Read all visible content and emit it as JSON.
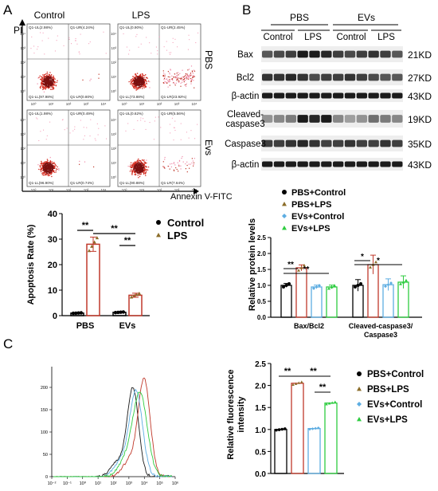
{
  "panels": {
    "A": "A",
    "B": "B",
    "C": "C"
  },
  "flow": {
    "col_labels": [
      "Control",
      "LPS"
    ],
    "row_labels": [
      "PBS",
      "Evs"
    ],
    "y_axis": "PI",
    "x_axis": "Annexin V-FITC",
    "plots": [
      {
        "ul": "Q1-UL(2.98%)",
        "ur": "Q1-UR(4.24%)",
        "ll": "Q1-LL(97.98%)",
        "lr": "Q1-LR(0.80%)"
      },
      {
        "ul": "Q1-UL(0.90%)",
        "ur": "Q1-UR(2.45%)",
        "ll": "Q1-LL(73.88%)",
        "lr": "Q1-LR(23.92%)"
      },
      {
        "ul": "Q1-UL(1.98%)",
        "ur": "Q1-UR(0.49%)",
        "ll": "Q1-LL(96.90%)",
        "lr": "Q1-LR(0.74%)"
      },
      {
        "ul": "Q1-UL(0.62%)",
        "ur": "Q1-UR(5.56%)",
        "ll": "Q1-LL(90.88%)",
        "lr": "Q1-LR(7.64%)"
      }
    ]
  },
  "blot": {
    "group_labels": [
      "PBS",
      "EVs"
    ],
    "sub_labels": [
      "Control",
      "LPS",
      "Control",
      "LPS"
    ],
    "rows": [
      {
        "protein": "Bax",
        "kd": "21KD"
      },
      {
        "protein": "Bcl2",
        "kd": "27KD"
      },
      {
        "protein": "β-actin",
        "kd": "43KD"
      },
      {
        "protein": "Cleaved-\ncaspase3",
        "kd": "19KD"
      },
      {
        "protein": "Caspase3",
        "kd": "35KD"
      },
      {
        "protein": "β-actin",
        "kd": "43KD"
      }
    ]
  },
  "histogram": {
    "y_ticks": [
      "0",
      "50",
      "100",
      "150",
      "200"
    ],
    "x_ticks": [
      "10⁻²",
      "10⁻¹",
      "10⁰",
      "10¹",
      "10²",
      "10³",
      "10⁴",
      "10⁵",
      "10⁶"
    ],
    "series_colors": [
      "#1a1a1a",
      "#c0392b",
      "#5dade2",
      "#2ecc40"
    ]
  },
  "chart_data": [
    {
      "type": "bar",
      "title": "",
      "xlabel": "",
      "ylabel": "Apoptosis Rate (%)",
      "categories": [
        "PBS",
        "EVs"
      ],
      "ylim": [
        0,
        40
      ],
      "yticks": [
        0,
        10,
        20,
        30,
        40
      ],
      "series": [
        {
          "name": "Control",
          "values": [
            1.0,
            1.3
          ],
          "color": "#000000"
        },
        {
          "name": "LPS",
          "values": [
            28.0,
            8.0
          ],
          "color": "#c0392b"
        }
      ],
      "significance": [
        "**",
        "**",
        "**"
      ],
      "legend": "top-right"
    },
    {
      "type": "bar",
      "title": "",
      "xlabel": "",
      "ylabel": "Relative protein levels",
      "categories": [
        "Bax/Bcl2",
        "Cleaved-caspase3/\nCaspase3"
      ],
      "ylim": [
        0,
        2.5
      ],
      "yticks": [
        0.0,
        0.5,
        1.0,
        1.5,
        2.0,
        2.5
      ],
      "series": [
        {
          "name": "PBS+Control",
          "values": [
            1.0,
            1.0
          ],
          "color": "#000000"
        },
        {
          "name": "PBS+LPS",
          "values": [
            1.55,
            1.65
          ],
          "color": "#c0392b"
        },
        {
          "name": "EVs+Control",
          "values": [
            0.95,
            1.02
          ],
          "color": "#5dade2"
        },
        {
          "name": "EVs+LPS",
          "values": [
            0.95,
            1.1
          ],
          "color": "#2ecc40"
        }
      ],
      "significance": [
        "**",
        "**",
        "*",
        "*"
      ],
      "legend": "top"
    },
    {
      "type": "bar",
      "title": "",
      "xlabel": "",
      "ylabel": "Relative fluorescence\nintensity",
      "categories": [
        ""
      ],
      "ylim": [
        0,
        2.5
      ],
      "yticks": [
        0.0,
        0.5,
        1.0,
        1.5,
        2.0,
        2.5
      ],
      "series": [
        {
          "name": "PBS+Control",
          "values": [
            1.0
          ],
          "color": "#000000"
        },
        {
          "name": "PBS+LPS",
          "values": [
            2.05
          ],
          "color": "#c0392b"
        },
        {
          "name": "EVs+Control",
          "values": [
            1.02
          ],
          "color": "#5dade2"
        },
        {
          "name": "EVs+LPS",
          "values": [
            1.6
          ],
          "color": "#2ecc40"
        }
      ],
      "significance": [
        "**",
        "**",
        "**"
      ],
      "legend": "right"
    }
  ]
}
